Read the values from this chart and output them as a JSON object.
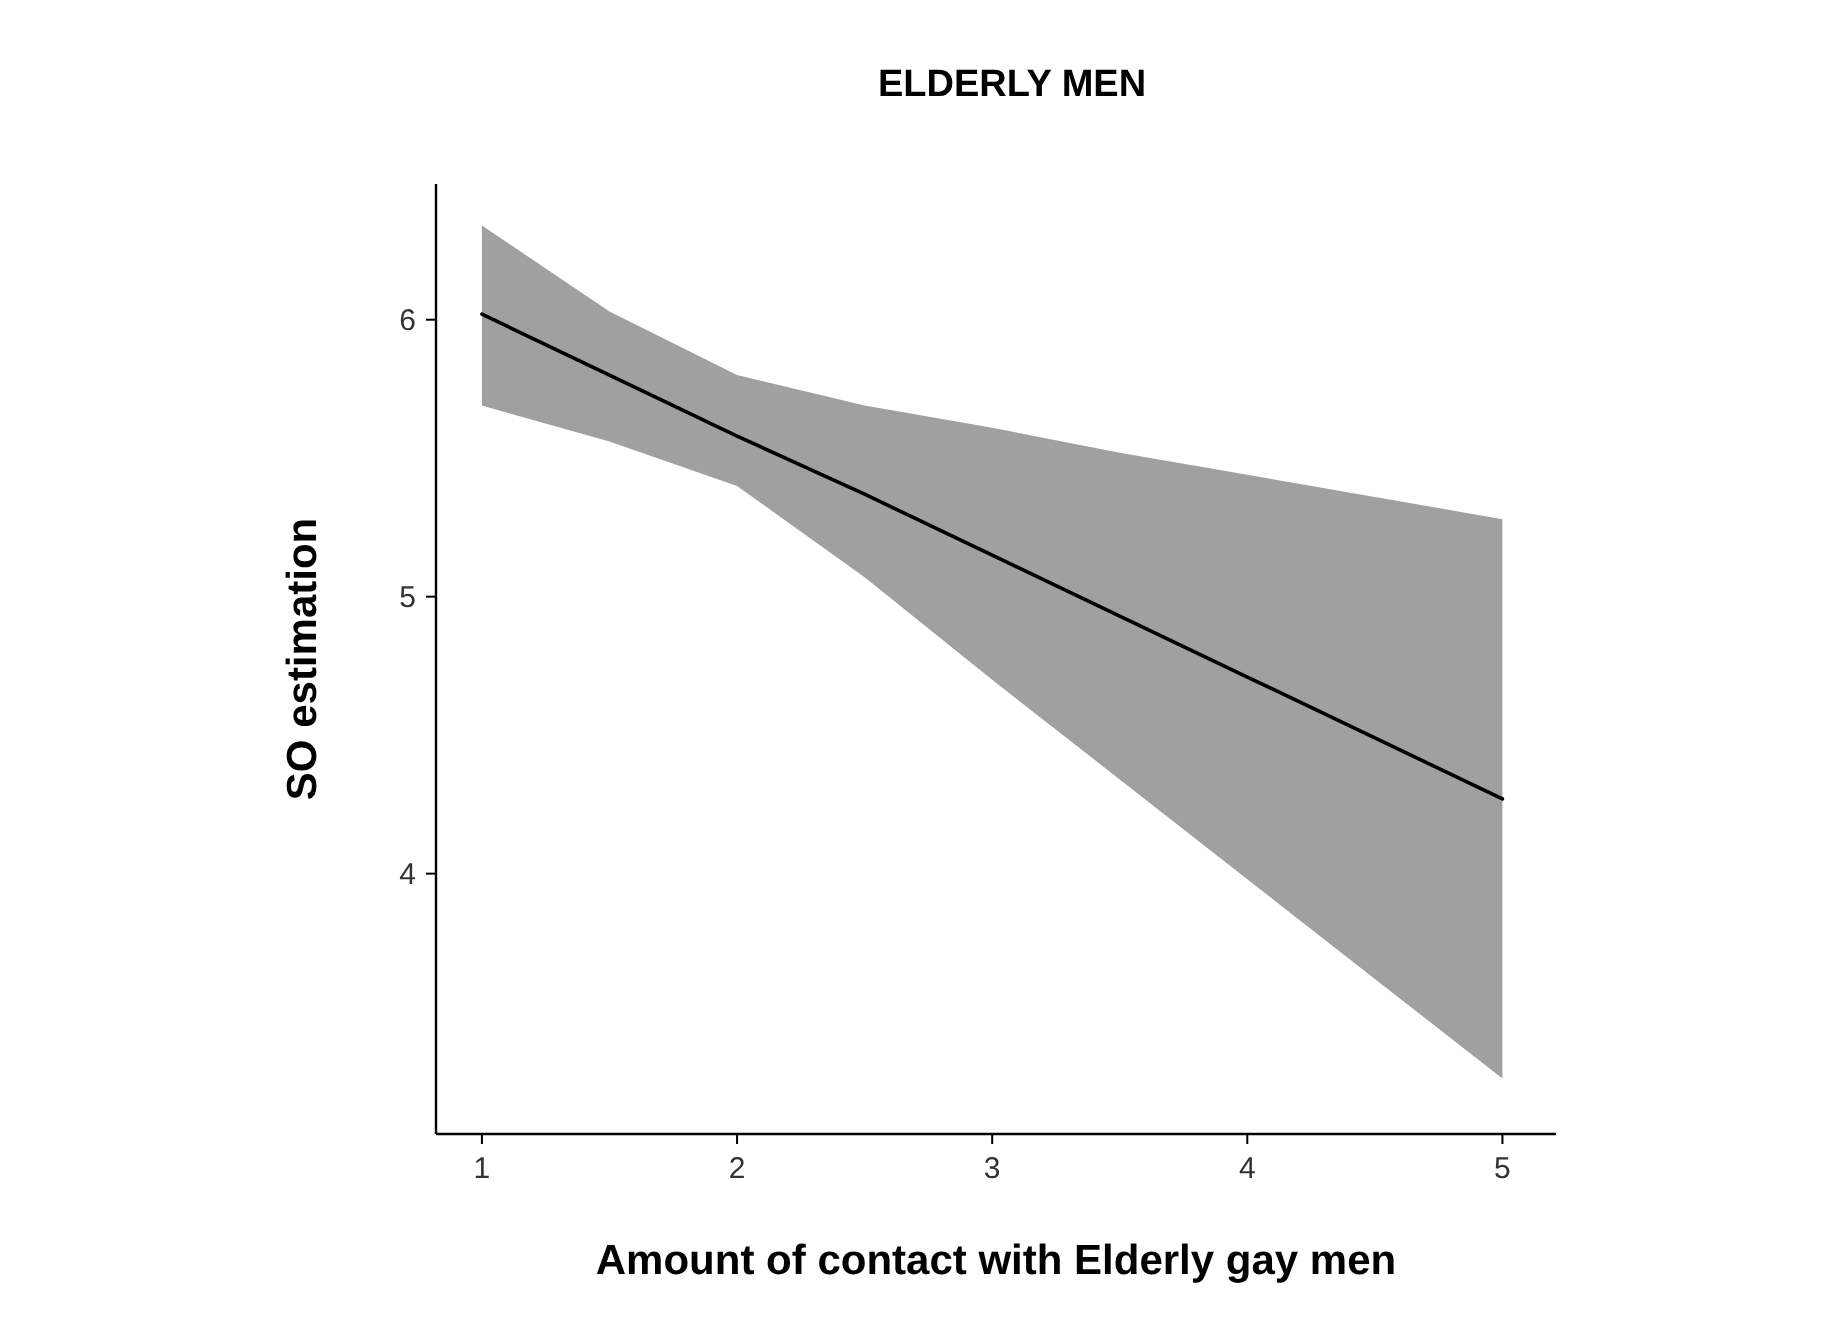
{
  "chart_data": {
    "type": "line",
    "title": "ELDERLY MEN",
    "xlabel": "Amount of contact with Elderly gay men",
    "ylabel": "SO estimation",
    "x": [
      1,
      1.5,
      2,
      2.5,
      3,
      3.5,
      4,
      4.5,
      5
    ],
    "series": [
      {
        "color": "#000000",
        "values": [
          6.02,
          5.8,
          5.58,
          5.37,
          5.15,
          4.93,
          4.71,
          4.49,
          4.27
        ],
        "lower": [
          5.69,
          5.56,
          5.4,
          5.07,
          4.7,
          4.34,
          3.98,
          3.62,
          3.26
        ],
        "upper": [
          6.34,
          6.03,
          5.8,
          5.69,
          5.61,
          5.52,
          5.44,
          5.36,
          5.28
        ]
      }
    ],
    "xlim": [
      0.82,
      5.21
    ],
    "ylim": [
      3.06,
      6.49
    ],
    "xticks": [
      1,
      2,
      3,
      4,
      5
    ],
    "yticks": [
      4,
      5,
      6
    ],
    "grid": false,
    "marker": "none",
    "line_style": "solid"
  }
}
